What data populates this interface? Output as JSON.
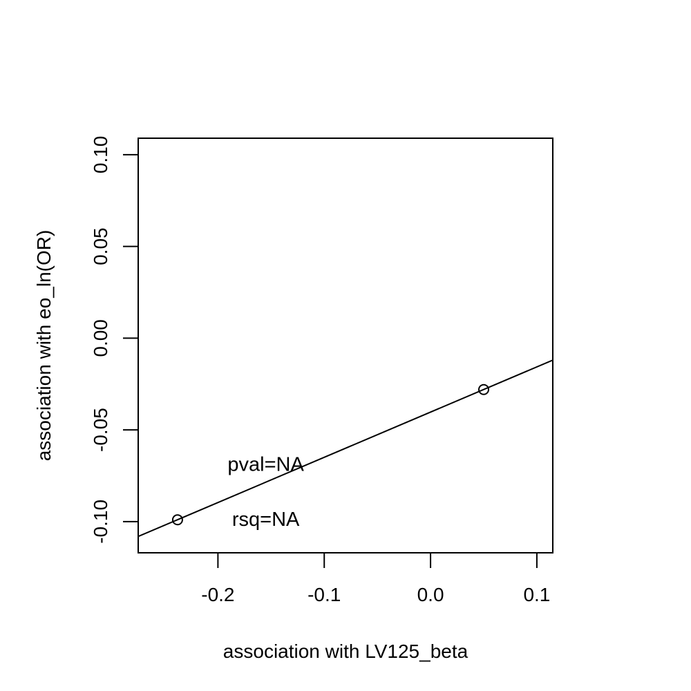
{
  "chart_data": {
    "type": "scatter",
    "xlabel": "association with LV125_beta",
    "ylabel": "association with eo_ln(OR)",
    "xlim": [
      -0.275,
      0.115
    ],
    "ylim": [
      -0.117,
      0.109
    ],
    "x_ticks": [
      -0.2,
      -0.1,
      0.0,
      0.1
    ],
    "x_tick_labels": [
      "-0.2",
      "-0.1",
      "0.0",
      "0.1"
    ],
    "y_ticks": [
      -0.1,
      -0.05,
      0.0,
      0.05,
      0.1
    ],
    "y_tick_labels": [
      "-0.10",
      "-0.05",
      "0.00",
      "0.05",
      "0.10"
    ],
    "points": [
      {
        "x": -0.238,
        "y": -0.099
      },
      {
        "x": 0.05,
        "y": -0.028
      }
    ],
    "fit_line": {
      "slope": 0.2465,
      "intercept": -0.0403
    },
    "annotations": [
      {
        "text": "pval=NA",
        "x": -0.155,
        "y": -0.069
      },
      {
        "text": "rsq=NA",
        "x": -0.155,
        "y": -0.099
      }
    ],
    "grid": false,
    "legend": "none"
  }
}
